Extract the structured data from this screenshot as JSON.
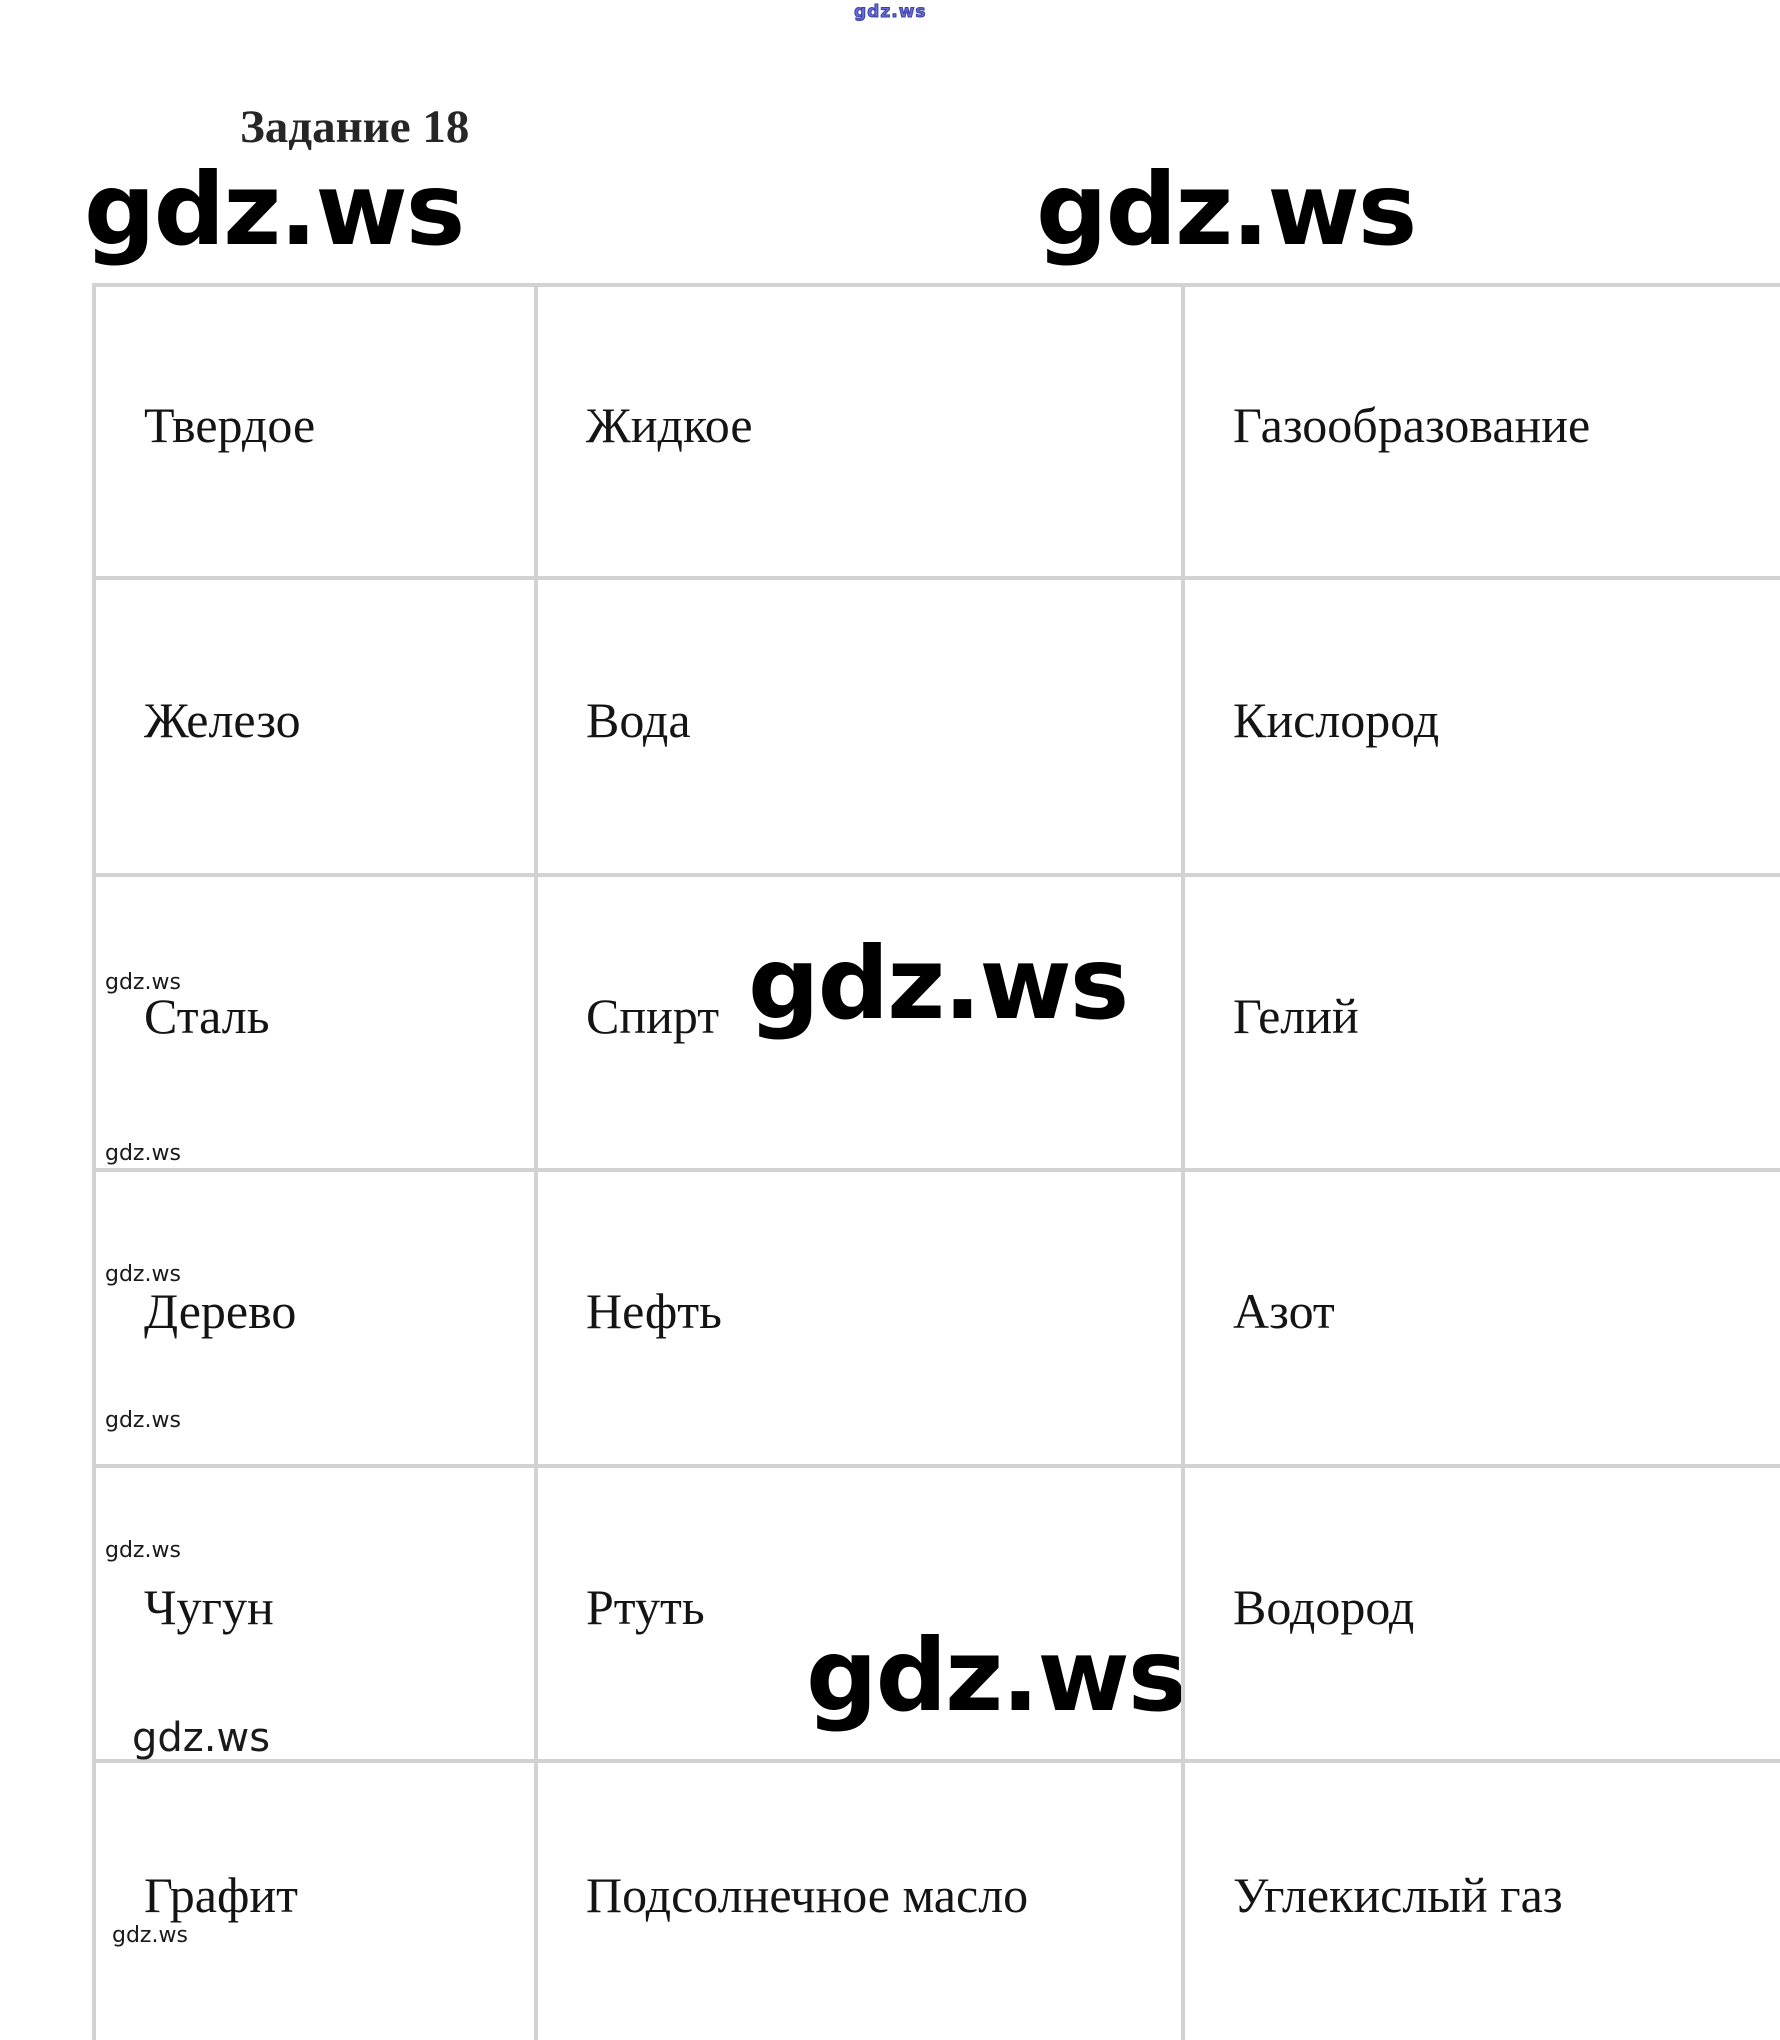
{
  "page": {
    "tiny_logo": "gdz.ws",
    "task_title": "Задание 18",
    "watermark_top_left": "gdz.ws",
    "watermark_top_right": "gdz.ws",
    "watermark_middle": "gdz.ws",
    "watermark_bottom": "gdz.ws"
  },
  "cell_marks": {
    "mark": "gdz.ws"
  },
  "table": {
    "headers": [
      "Твердое",
      "Жидкое",
      "Газообразование"
    ],
    "rows": [
      [
        "Железо",
        "Вода",
        "Кислород"
      ],
      [
        "Сталь",
        "Спирт",
        "Гелий"
      ],
      [
        "Дерево",
        "Нефть",
        "Азот"
      ],
      [
        "Чугун",
        "Ртуть",
        "Водород"
      ],
      [
        "Графит",
        "Подсолнечное масло",
        "Углекислый газ"
      ]
    ]
  },
  "colors": {
    "border": "#d2d2d2",
    "text": "#141414",
    "watermark": "#000000",
    "tiny_logo_blue": "#3a3eab"
  }
}
